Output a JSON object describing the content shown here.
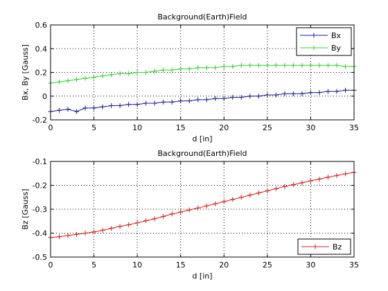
{
  "chart_data": [
    {
      "type": "line",
      "title": "Background(Earth)Field",
      "xlabel": "d [in]",
      "ylabel": "Bx, By [Gauss]",
      "xlim": [
        0,
        35
      ],
      "ylim": [
        -0.2,
        0.6
      ],
      "xticks": [
        0,
        5,
        10,
        15,
        20,
        25,
        30,
        35
      ],
      "xtick_labels": [
        "0",
        "5",
        "10",
        "15",
        "20",
        "25",
        "30",
        "35"
      ],
      "yticks": [
        -0.2,
        0,
        0.2,
        0.4,
        0.6
      ],
      "ytick_labels": [
        "-0.2",
        "0",
        "0.2",
        "0.4",
        "0.6"
      ],
      "grid": true,
      "grid_style": "dotted",
      "legend_position": "top-right",
      "series": [
        {
          "name": "Bx",
          "color": "#1a1a8c",
          "marker": "plus",
          "x": [
            0,
            1,
            2,
            3,
            4,
            5,
            6,
            7,
            8,
            9,
            10,
            11,
            12,
            13,
            14,
            15,
            16,
            17,
            18,
            19,
            20,
            21,
            22,
            23,
            24,
            25,
            26,
            27,
            28,
            29,
            30,
            31,
            32,
            33,
            34,
            35
          ],
          "y": [
            -0.13,
            -0.12,
            -0.11,
            -0.13,
            -0.1,
            -0.1,
            -0.09,
            -0.08,
            -0.08,
            -0.07,
            -0.07,
            -0.06,
            -0.06,
            -0.05,
            -0.05,
            -0.04,
            -0.04,
            -0.03,
            -0.03,
            -0.02,
            -0.02,
            -0.01,
            -0.01,
            0.0,
            0.0,
            0.01,
            0.01,
            0.02,
            0.02,
            0.02,
            0.03,
            0.03,
            0.04,
            0.04,
            0.05,
            0.05
          ]
        },
        {
          "name": "By",
          "color": "#33cc33",
          "marker": "plus",
          "x": [
            0,
            1,
            2,
            3,
            4,
            5,
            6,
            7,
            8,
            9,
            10,
            11,
            12,
            13,
            14,
            15,
            16,
            17,
            18,
            19,
            20,
            21,
            22,
            23,
            24,
            25,
            26,
            27,
            28,
            29,
            30,
            31,
            32,
            33,
            34,
            35
          ],
          "y": [
            0.11,
            0.12,
            0.13,
            0.14,
            0.15,
            0.16,
            0.17,
            0.18,
            0.19,
            0.19,
            0.2,
            0.2,
            0.21,
            0.22,
            0.22,
            0.23,
            0.23,
            0.24,
            0.24,
            0.24,
            0.25,
            0.25,
            0.26,
            0.26,
            0.26,
            0.26,
            0.26,
            0.26,
            0.26,
            0.26,
            0.26,
            0.26,
            0.26,
            0.26,
            0.25,
            0.25
          ]
        }
      ]
    },
    {
      "type": "line",
      "title": "Background(Earth)Field",
      "xlabel": "d [in]",
      "ylabel": "Bz [Gauss]",
      "xlim": [
        0,
        35
      ],
      "ylim": [
        -0.5,
        -0.1
      ],
      "xticks": [
        0,
        5,
        10,
        15,
        20,
        25,
        30,
        35
      ],
      "xtick_labels": [
        "0",
        "5",
        "10",
        "15",
        "20",
        "25",
        "30",
        "35"
      ],
      "yticks": [
        -0.5,
        -0.4,
        -0.3,
        -0.2,
        -0.1
      ],
      "ytick_labels": [
        "-0.5",
        "-0.4",
        "-0.3",
        "-0.2",
        "-0.1"
      ],
      "grid": true,
      "grid_style": "dotted",
      "legend_position": "bottom-right",
      "series": [
        {
          "name": "Bz",
          "color": "#cc1f1f",
          "marker": "plus",
          "x": [
            0,
            1,
            2,
            3,
            4,
            5,
            6,
            7,
            8,
            9,
            10,
            11,
            12,
            13,
            14,
            15,
            16,
            17,
            18,
            19,
            20,
            21,
            22,
            23,
            24,
            25,
            26,
            27,
            28,
            29,
            30,
            31,
            32,
            33,
            34,
            35
          ],
          "y": [
            -0.418,
            -0.415,
            -0.41,
            -0.405,
            -0.4,
            -0.395,
            -0.388,
            -0.38,
            -0.372,
            -0.365,
            -0.357,
            -0.348,
            -0.34,
            -0.33,
            -0.32,
            -0.312,
            -0.303,
            -0.295,
            -0.286,
            -0.277,
            -0.268,
            -0.259,
            -0.25,
            -0.241,
            -0.232,
            -0.223,
            -0.214,
            -0.205,
            -0.197,
            -0.189,
            -0.181,
            -0.174,
            -0.166,
            -0.159,
            -0.152,
            -0.146
          ]
        }
      ]
    }
  ]
}
